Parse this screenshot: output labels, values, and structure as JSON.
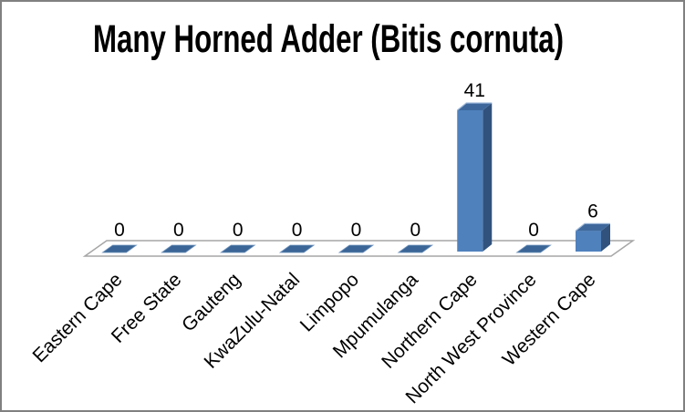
{
  "window": {
    "background": "#ffffff",
    "border_color": "#808080"
  },
  "chart_data": {
    "type": "bar",
    "style": "3d-clustered-column",
    "title": "Many Horned Adder (Bitis cornuta)",
    "categories": [
      "Eastern Cape",
      "Free State",
      "Gauteng",
      "KwaZulu-Natal",
      "Limpopo",
      "Mpumulanga",
      "Northern Cape",
      "North West Province",
      "Western Cape"
    ],
    "values": [
      0,
      0,
      0,
      0,
      0,
      0,
      41,
      0,
      6
    ],
    "data_labels": [
      "0",
      "0",
      "0",
      "0",
      "0",
      "0",
      "41",
      "0",
      "6"
    ],
    "xlabel": "",
    "ylabel": "",
    "ylim": [
      0,
      41
    ],
    "grid": "off",
    "legend": "none",
    "x_label_rotation_deg": -45,
    "colors": {
      "bar_front": "#4F81BD",
      "bar_side": "#31527C",
      "bar_top": "#3E689C",
      "bar_top_highlight": "#9FB9DA",
      "zero_tile": "#3A6596",
      "zero_tile_edge": "#6E92BC",
      "floor_fill": "#ffffff",
      "floor_border": "#A6A6A6",
      "text": "#000000"
    }
  }
}
